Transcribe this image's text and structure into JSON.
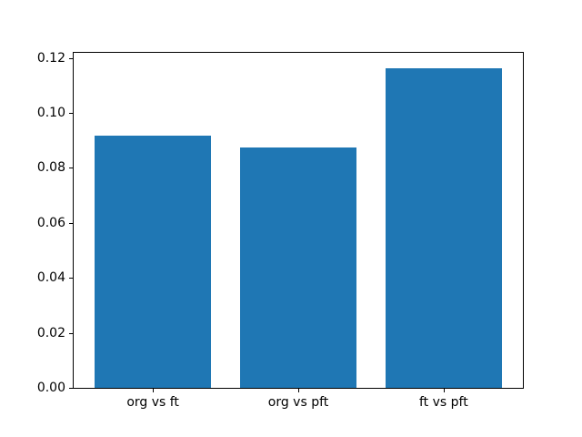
{
  "figure": {
    "background": "#ffffff",
    "frame_color": "#000000",
    "text_color": "#000000"
  },
  "chart_data": {
    "type": "bar",
    "title": "",
    "xlabel": "",
    "ylabel": "",
    "categories": [
      "org vs ft",
      "org vs pft",
      "ft vs pft"
    ],
    "values": [
      0.0917,
      0.0876,
      0.1164
    ],
    "bar_color": "#1f77b4",
    "bar_width": 0.8,
    "xlim": [
      -0.545,
      2.545
    ],
    "ylim": [
      0,
      0.1219
    ],
    "yticks": [
      0.0,
      0.02,
      0.04,
      0.06,
      0.08,
      0.1,
      0.12
    ],
    "ytick_labels": [
      "0.00",
      "0.02",
      "0.04",
      "0.06",
      "0.08",
      "0.10",
      "0.12"
    ],
    "grid": false,
    "legend": false
  }
}
